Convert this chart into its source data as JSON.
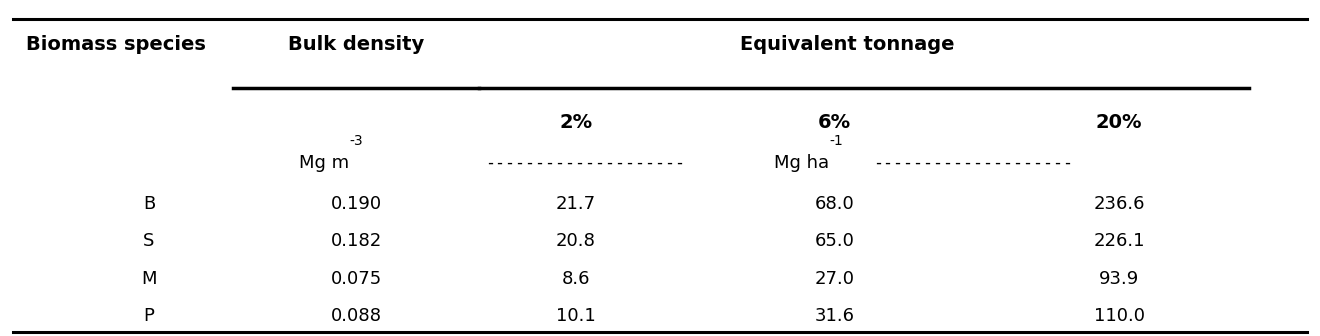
{
  "col1_header": "Biomass species",
  "col2_header": "Bulk density",
  "col3_header": "Equivalent tonnage",
  "subheader_pct": [
    "2%",
    "6%",
    "20%"
  ],
  "unit_bulk": "Mg m",
  "unit_bulk_sup": "-3",
  "unit_equiv": "Mg ha",
  "unit_equiv_sup": "-1",
  "dash_str": "--------------------",
  "species": [
    "B",
    "S",
    "M",
    "P"
  ],
  "bulk_density": [
    "0.190",
    "0.182",
    "0.075",
    "0.088"
  ],
  "equiv_2pct": [
    "21.7",
    "20.8",
    "8.6",
    "10.1"
  ],
  "equiv_6pct": [
    "68.0",
    "65.0",
    "27.0",
    "31.6"
  ],
  "equiv_20pct": [
    "236.6",
    "226.1",
    "93.9",
    "110.0"
  ],
  "bg_color": "#ffffff",
  "text_color": "#000000",
  "figsize": [
    13.2,
    3.36
  ],
  "dpi": 100,
  "fontsize_header": 14,
  "fontsize_body": 13,
  "fontsize_super": 10
}
